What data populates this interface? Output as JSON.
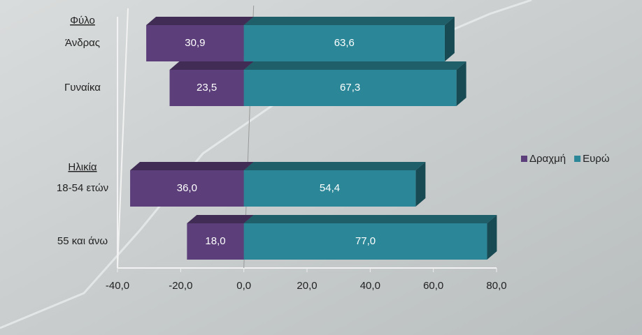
{
  "chart_data": {
    "type": "bar",
    "orientation": "horizontal",
    "group_labels": [
      "Φύλο",
      "Ηλικία"
    ],
    "categories": [
      "Άνδρας",
      "Γυναίκα",
      "18-54 ετών",
      "55 και άνω"
    ],
    "series": [
      {
        "name": "Δραχμή",
        "color": "#5c3f7a",
        "values": [
          -30.9,
          -23.5,
          -36.0,
          -18.0
        ],
        "value_labels": [
          "30,9",
          "23,5",
          "36,0",
          "18,0"
        ]
      },
      {
        "name": "Ευρώ",
        "color": "#2b8797",
        "values": [
          63.6,
          67.3,
          54.4,
          77.0
        ],
        "value_labels": [
          "63,6",
          "67,3",
          "54,4",
          "77,0"
        ]
      }
    ],
    "xlim": [
      -40,
      80
    ],
    "xticks": [
      {
        "value": -40,
        "label": "-40,0"
      },
      {
        "value": -20,
        "label": "-20,0"
      },
      {
        "value": 0,
        "label": "0,0"
      },
      {
        "value": 20,
        "label": "20,0"
      },
      {
        "value": 40,
        "label": "40,0"
      },
      {
        "value": 60,
        "label": "60,0"
      },
      {
        "value": 80,
        "label": "80,0"
      }
    ],
    "legend": "right"
  }
}
